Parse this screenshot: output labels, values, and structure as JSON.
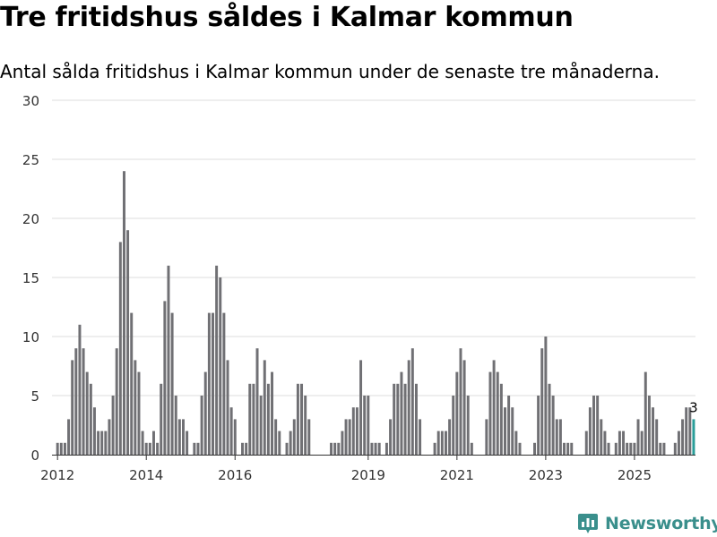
{
  "title": "Tre fritidshus såldes i Kalmar kommun",
  "subtitle": "Antal sålda fritidshus i Kalmar kommun under de senaste tre månaderna.",
  "brand": "Newsworthy",
  "colors": {
    "bar": "#707074",
    "highlight": "#2a9d99",
    "grid": "#dcdcdc",
    "axis": "#333333",
    "brand": "#3a8f8c"
  },
  "chart_data": {
    "type": "bar",
    "title": "Tre fritidshus såldes i Kalmar kommun",
    "subtitle": "Antal sålda fritidshus i Kalmar kommun under de senaste tre månaderna.",
    "xlabel": "",
    "ylabel": "",
    "ylim": [
      0,
      30
    ],
    "yticks": [
      0,
      5,
      10,
      15,
      20,
      25,
      30
    ],
    "grid": true,
    "legend": "none",
    "frequency": "monthly",
    "start": "2011-12",
    "xticks": [
      {
        "label": "2012",
        "index": 1
      },
      {
        "label": "2014",
        "index": 25
      },
      {
        "label": "2016",
        "index": 49
      },
      {
        "label": "2019",
        "index": 85
      },
      {
        "label": "2021",
        "index": 109
      },
      {
        "label": "2023",
        "index": 133
      },
      {
        "label": "2025",
        "index": 157
      }
    ],
    "values": [
      0,
      1,
      1,
      1,
      3,
      8,
      9,
      11,
      9,
      7,
      6,
      4,
      2,
      2,
      2,
      3,
      5,
      9,
      18,
      24,
      19,
      12,
      8,
      7,
      2,
      1,
      1,
      2,
      1,
      6,
      13,
      16,
      12,
      5,
      3,
      3,
      2,
      0,
      1,
      1,
      5,
      7,
      12,
      12,
      16,
      15,
      12,
      8,
      4,
      3,
      0,
      1,
      1,
      6,
      6,
      9,
      5,
      8,
      6,
      7,
      3,
      2,
      0,
      1,
      2,
      3,
      6,
      6,
      5,
      3,
      0,
      0,
      0,
      0,
      0,
      1,
      1,
      1,
      2,
      3,
      3,
      4,
      4,
      8,
      5,
      5,
      1,
      1,
      1,
      0,
      1,
      3,
      6,
      6,
      7,
      6,
      8,
      9,
      6,
      3,
      0,
      0,
      0,
      1,
      2,
      2,
      2,
      3,
      5,
      7,
      9,
      8,
      5,
      1,
      0,
      0,
      0,
      3,
      7,
      8,
      7,
      6,
      4,
      5,
      4,
      2,
      1,
      0,
      0,
      0,
      1,
      5,
      9,
      10,
      6,
      5,
      3,
      3,
      1,
      1,
      1,
      0,
      0,
      0,
      2,
      4,
      5,
      5,
      3,
      2,
      1,
      0,
      1,
      2,
      2,
      1,
      1,
      1,
      3,
      2,
      7,
      5,
      4,
      3,
      1,
      1,
      0,
      0,
      1,
      2,
      3,
      4,
      4,
      3
    ],
    "highlight_last": true,
    "data_labels": [
      {
        "index": 173,
        "text": "3"
      }
    ]
  }
}
